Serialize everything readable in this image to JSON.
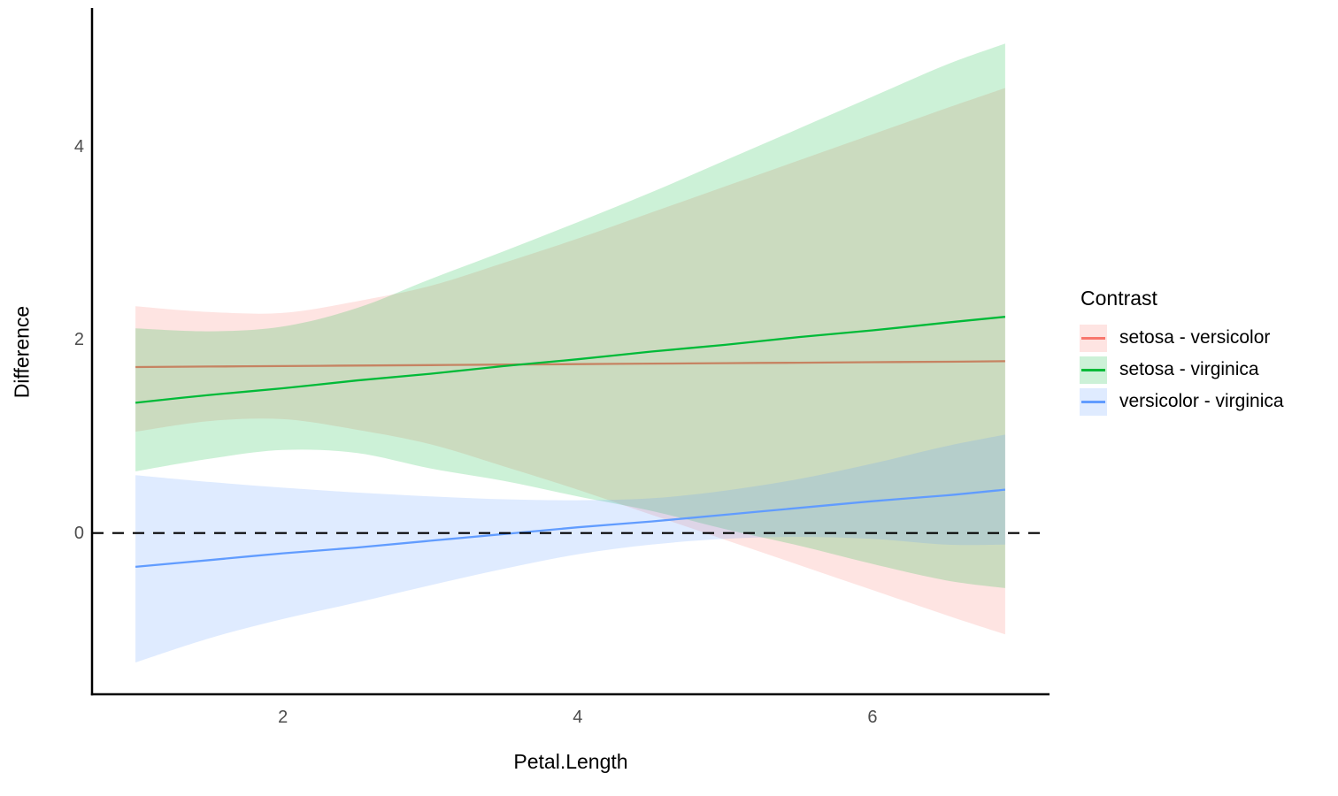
{
  "chart_data": {
    "type": "line",
    "xlabel": "Petal.Length",
    "ylabel": "Difference",
    "legend_title": "Contrast",
    "legend_position": "right",
    "grid": "off",
    "theme": "classic-white",
    "xlim": [
      0.705,
      7.195
    ],
    "ylim": [
      -1.67,
      5.43
    ],
    "x_ticks": [
      2,
      4,
      6
    ],
    "y_ticks": [
      0,
      2,
      4
    ],
    "reference_line": {
      "y": 0,
      "style": "dashed",
      "color": "#000000"
    },
    "ribbon_alpha": 0.2,
    "x": [
      1.0,
      1.5,
      2.0,
      2.5,
      3.0,
      3.5,
      4.0,
      4.5,
      5.0,
      5.5,
      6.0,
      6.5,
      6.9
    ],
    "series": [
      {
        "name": "setosa - versicolor",
        "color": "#F8766D",
        "line": [
          1.72,
          1.725,
          1.73,
          1.735,
          1.74,
          1.745,
          1.75,
          1.755,
          1.76,
          1.765,
          1.77,
          1.775,
          1.78
        ],
        "upper": [
          2.35,
          2.29,
          2.28,
          2.4,
          2.56,
          2.8,
          3.05,
          3.32,
          3.59,
          3.86,
          4.13,
          4.4,
          4.61
        ],
        "lower": [
          1.05,
          1.16,
          1.18,
          1.07,
          0.92,
          0.69,
          0.45,
          0.19,
          -0.07,
          -0.33,
          -0.59,
          -0.85,
          -1.05
        ]
      },
      {
        "name": "setosa - virginica",
        "color": "#00BA38",
        "line": [
          1.35,
          1.43,
          1.5,
          1.58,
          1.65,
          1.73,
          1.8,
          1.88,
          1.95,
          2.03,
          2.1,
          2.18,
          2.24
        ],
        "upper": [
          2.12,
          2.09,
          2.14,
          2.33,
          2.63,
          2.92,
          3.22,
          3.53,
          3.86,
          4.19,
          4.52,
          4.85,
          5.07
        ],
        "lower": [
          0.64,
          0.77,
          0.86,
          0.83,
          0.67,
          0.54,
          0.38,
          0.23,
          0.04,
          -0.13,
          -0.32,
          -0.49,
          -0.57
        ]
      },
      {
        "name": "versicolor - virginica",
        "color": "#619CFF",
        "line": [
          -0.35,
          -0.28,
          -0.21,
          -0.15,
          -0.08,
          -0.01,
          0.06,
          0.12,
          0.19,
          0.26,
          0.33,
          0.39,
          0.45
        ],
        "upper": [
          0.6,
          0.53,
          0.47,
          0.42,
          0.38,
          0.35,
          0.34,
          0.36,
          0.44,
          0.56,
          0.72,
          0.9,
          1.02
        ],
        "lower": [
          -1.34,
          -1.09,
          -0.89,
          -0.72,
          -0.54,
          -0.37,
          -0.22,
          -0.12,
          -0.06,
          -0.04,
          -0.06,
          -0.12,
          -0.12
        ]
      }
    ]
  }
}
